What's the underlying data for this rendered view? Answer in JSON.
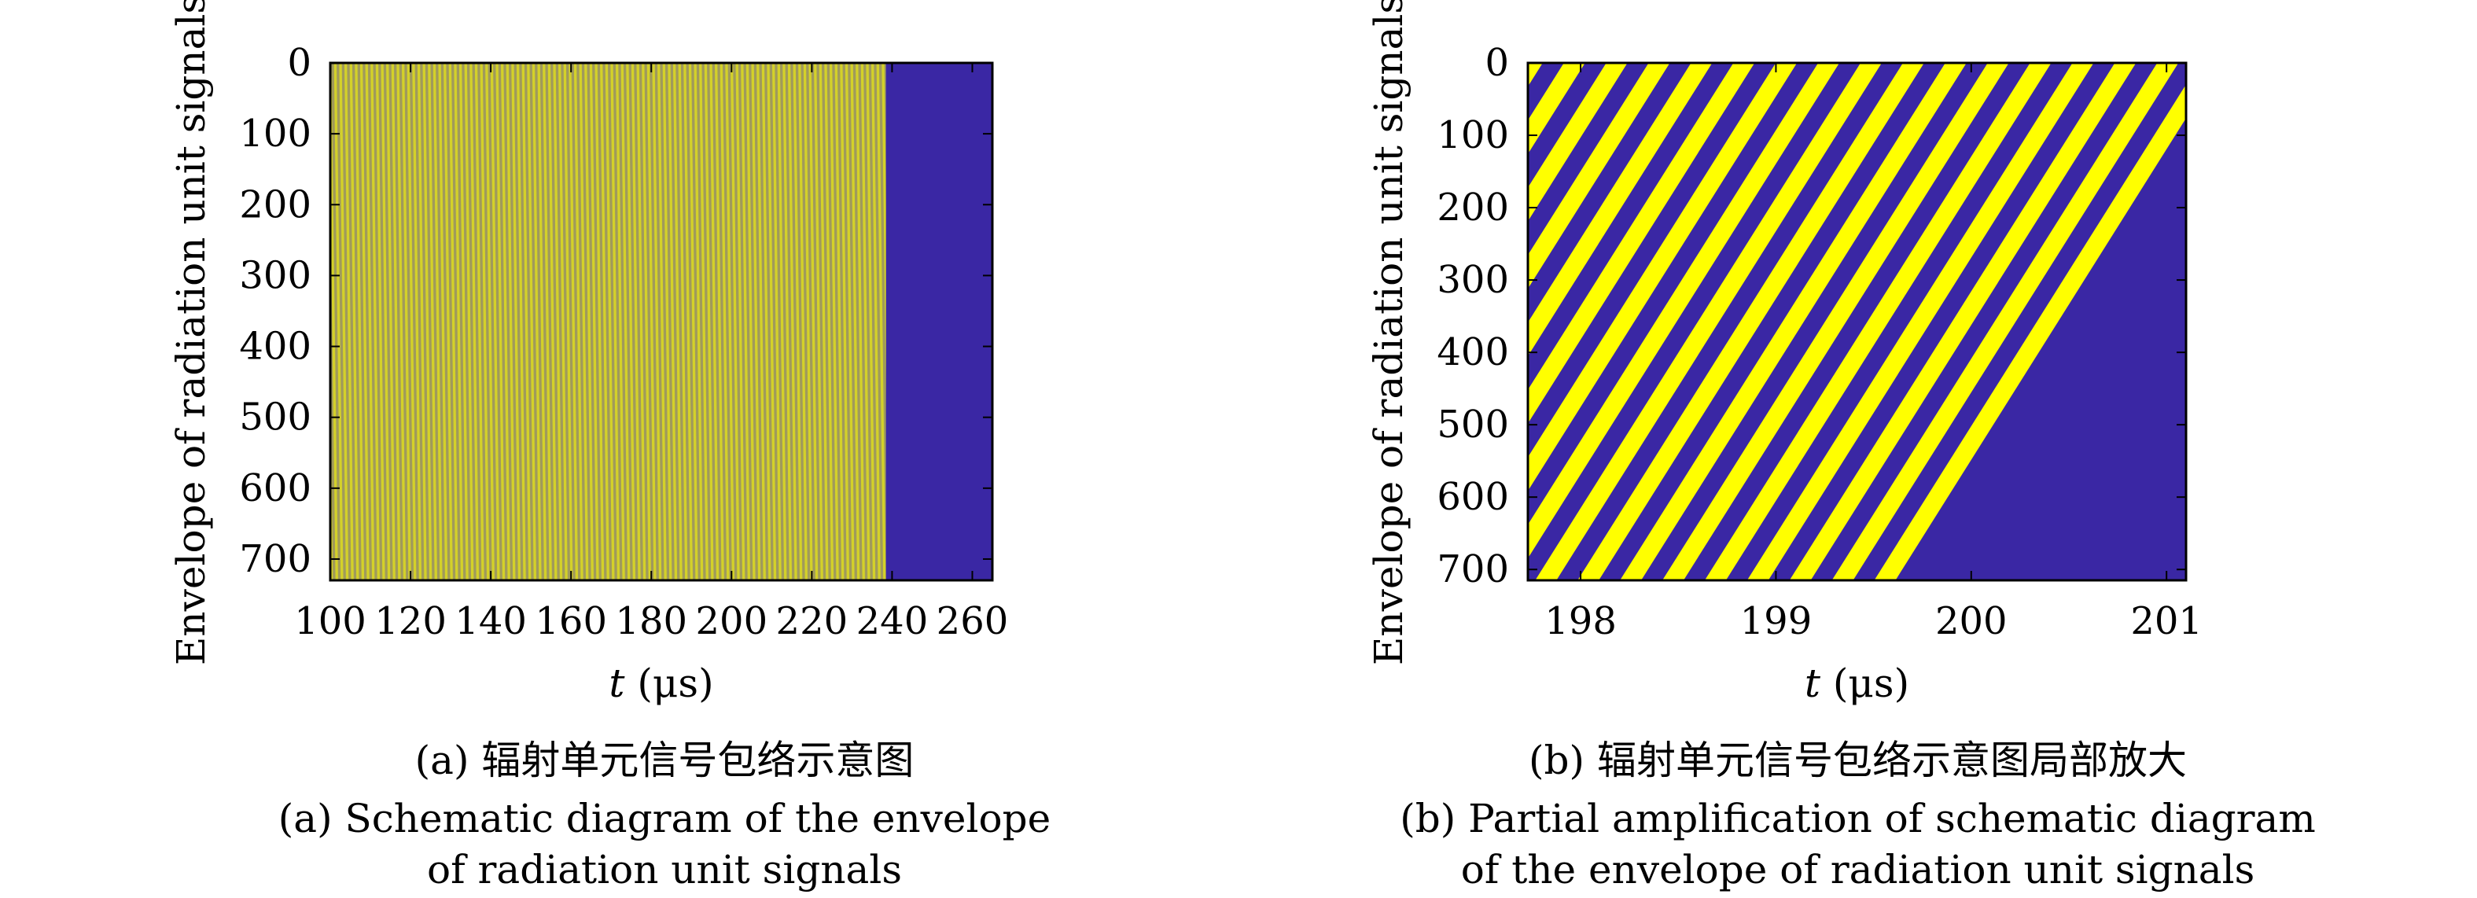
{
  "chart_data": [
    {
      "type": "heatmap",
      "panel_label": "(a)",
      "caption_zh": "(a) 辐射单元信号包络示意图",
      "caption_en_line1": "(a) Schematic diagram of the envelope",
      "caption_en_line2": "of radiation unit signals",
      "xlabel_var": "t",
      "xlabel_unit": " (μs)",
      "ylabel": "Envelope of radiation unit signals",
      "xlim": [
        100,
        265
      ],
      "ylim": [
        0,
        730
      ],
      "y_reversed": true,
      "xticks": [
        100,
        120,
        140,
        160,
        180,
        200,
        220,
        240,
        260
      ],
      "yticks": [
        0,
        100,
        200,
        300,
        400,
        500,
        600,
        700
      ],
      "signal_end_t": 238.5,
      "stripe_period_us": 1.3,
      "stripe_slope_us_per_unit": 0.0023,
      "colors": {
        "high": "#ffff00",
        "low": "#3a27a4",
        "dense_mix": "#a09a5c"
      }
    },
    {
      "type": "heatmap",
      "panel_label": "(b)",
      "caption_zh": "(b) 辐射单元信号包络示意图局部放大",
      "caption_en_line1": "(b) Partial amplification of schematic diagram",
      "caption_en_line2": "of the envelope of radiation unit signals",
      "xlabel_var": "t",
      "xlabel_unit": " (μs)",
      "ylabel": "Envelope of radiation unit signals",
      "xlim": [
        197.73,
        201.1
      ],
      "ylim": [
        0,
        715
      ],
      "y_reversed": true,
      "xticks": [
        198,
        199,
        200,
        201
      ],
      "yticks": [
        0,
        100,
        200,
        300,
        400,
        500,
        600,
        700
      ],
      "stripe_period_us": 0.217,
      "stripe_duty": 0.5,
      "stripe_slope_us_per_unit": 0.00233,
      "colors": {
        "high": "#ffff00",
        "low": "#3a27a4"
      }
    }
  ]
}
